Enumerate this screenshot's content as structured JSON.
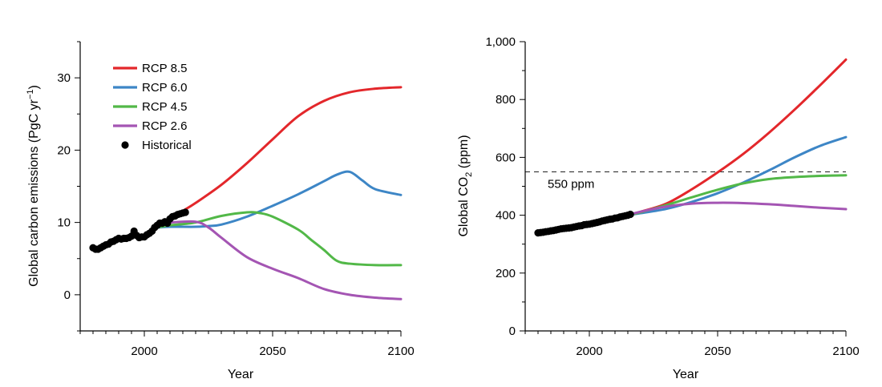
{
  "chart_data": [
    {
      "type": "line",
      "xlabel": "Year",
      "ylabel_main": "Global carbon emissions (PgC yr",
      "ylabel_sup": "−1",
      "ylabel_tail": ")",
      "xlim": [
        1975,
        2100
      ],
      "ylim": [
        -5,
        35
      ],
      "xticks": [
        2000,
        2050,
        2100
      ],
      "xticks_minor": [
        1975,
        1980,
        1985,
        1990,
        1995,
        2000,
        2005,
        2010,
        2015,
        2020,
        2025,
        2030,
        2035,
        2040,
        2045,
        2050,
        2055,
        2060,
        2065,
        2070,
        2075,
        2080,
        2085,
        2090,
        2095,
        2100
      ],
      "yticks": [
        0,
        10,
        20,
        30
      ],
      "yticks_minor": [
        -5,
        0,
        5,
        10,
        15,
        20,
        25,
        30,
        35
      ],
      "ytick_labels": [
        "0",
        "10",
        "20",
        "30"
      ],
      "legend": [
        {
          "label": "RCP 8.5",
          "color": "#e3272b",
          "kind": "line"
        },
        {
          "label": "RCP 6.0",
          "color": "#3d86c6",
          "kind": "line"
        },
        {
          "label": "RCP 4.5",
          "color": "#52b848",
          "kind": "line"
        },
        {
          "label": "RCP 2.6",
          "color": "#a455b3",
          "kind": "line"
        },
        {
          "label": "Historical",
          "color": "#000000",
          "kind": "dot"
        }
      ],
      "series": [
        {
          "name": "RCP 8.5",
          "color": "#e3272b",
          "x": [
            2015,
            2020,
            2030,
            2040,
            2050,
            2060,
            2070,
            2080,
            2090,
            2100
          ],
          "y": [
            11.6,
            12.7,
            15.2,
            18.2,
            21.5,
            24.7,
            26.8,
            28.0,
            28.5,
            28.7
          ]
        },
        {
          "name": "RCP 6.0",
          "color": "#3d86c6",
          "x": [
            2005,
            2010,
            2020,
            2025,
            2030,
            2040,
            2050,
            2060,
            2070,
            2075,
            2080,
            2085,
            2090,
            2100
          ],
          "y": [
            9.3,
            9.4,
            9.4,
            9.5,
            9.7,
            10.8,
            12.3,
            13.9,
            15.7,
            16.6,
            17.0,
            15.8,
            14.6,
            13.8
          ]
        },
        {
          "name": "RCP 4.5",
          "color": "#52b848",
          "x": [
            2005,
            2010,
            2020,
            2030,
            2040,
            2045,
            2050,
            2060,
            2065,
            2070,
            2075,
            2080,
            2090,
            2100
          ],
          "y": [
            9.3,
            9.6,
            10.0,
            10.9,
            11.4,
            11.3,
            10.8,
            9.0,
            7.6,
            6.2,
            4.7,
            4.3,
            4.1,
            4.1
          ]
        },
        {
          "name": "RCP 2.6",
          "color": "#a455b3",
          "x": [
            2010,
            2020,
            2025,
            2030,
            2040,
            2050,
            2060,
            2070,
            2080,
            2090,
            2100
          ],
          "y": [
            10.0,
            10.1,
            9.3,
            7.9,
            5.2,
            3.6,
            2.3,
            0.8,
            0.0,
            -0.4,
            -0.6
          ]
        }
      ],
      "historical": {
        "x": [
          1980,
          1981,
          1982,
          1983,
          1984,
          1985,
          1986,
          1987,
          1988,
          1989,
          1990,
          1991,
          1992,
          1993,
          1994,
          1995,
          1996,
          1997,
          1998,
          1999,
          2000,
          2001,
          2002,
          2003,
          2004,
          2005,
          2006,
          2007,
          2008,
          2009,
          2010,
          2011,
          2012,
          2013,
          2014,
          2015,
          2016
        ],
        "y": [
          6.5,
          6.3,
          6.3,
          6.5,
          6.7,
          6.9,
          7.0,
          7.3,
          7.4,
          7.6,
          7.8,
          7.7,
          7.8,
          7.8,
          7.9,
          8.1,
          8.8,
          8.2,
          7.9,
          8.0,
          8.0,
          8.3,
          8.5,
          8.8,
          9.3,
          9.6,
          9.9,
          9.9,
          10.1,
          9.9,
          10.5,
          10.8,
          10.9,
          11.1,
          11.2,
          11.3,
          11.4
        ]
      }
    },
    {
      "type": "line",
      "xlabel": "Year",
      "ylabel_main": "Global CO",
      "ylabel_sub": "2",
      "ylabel_tail": " (ppm)",
      "xlim": [
        1975,
        2100
      ],
      "ylim": [
        0,
        1000
      ],
      "xticks": [
        2000,
        2050,
        2100
      ],
      "xticks_minor": [
        1975,
        1980,
        1985,
        1990,
        1995,
        2000,
        2005,
        2010,
        2015,
        2020,
        2025,
        2030,
        2035,
        2040,
        2045,
        2050,
        2055,
        2060,
        2065,
        2070,
        2075,
        2080,
        2085,
        2090,
        2095,
        2100
      ],
      "yticks": [
        0,
        200,
        400,
        600,
        800,
        1000
      ],
      "yticks_minor": [
        0,
        100,
        200,
        300,
        400,
        500,
        600,
        700,
        800,
        900,
        1000
      ],
      "ytick_labels": [
        "0",
        "200",
        "400",
        "600",
        "800",
        "1,000"
      ],
      "reference_line": {
        "y": 550,
        "label": "550 ppm"
      },
      "series": [
        {
          "name": "RCP 8.5",
          "color": "#e3272b",
          "x": [
            2015,
            2020,
            2030,
            2040,
            2050,
            2060,
            2070,
            2080,
            2090,
            2100
          ],
          "y": [
            400,
            412,
            440,
            490,
            548,
            612,
            685,
            765,
            850,
            938
          ]
        },
        {
          "name": "RCP 6.0",
          "color": "#3d86c6",
          "x": [
            2015,
            2020,
            2030,
            2040,
            2050,
            2060,
            2070,
            2080,
            2090,
            2100
          ],
          "y": [
            400,
            407,
            422,
            446,
            476,
            513,
            555,
            600,
            640,
            670
          ]
        },
        {
          "name": "RCP 4.5",
          "color": "#52b848",
          "x": [
            2015,
            2020,
            2030,
            2040,
            2050,
            2060,
            2070,
            2080,
            2090,
            2100
          ],
          "y": [
            400,
            410,
            435,
            462,
            488,
            510,
            525,
            532,
            536,
            538
          ]
        },
        {
          "name": "RCP 2.6",
          "color": "#a455b3",
          "x": [
            2015,
            2020,
            2030,
            2040,
            2050,
            2060,
            2070,
            2080,
            2090,
            2100
          ],
          "y": [
            400,
            412,
            430,
            440,
            443,
            442,
            438,
            432,
            426,
            421
          ]
        }
      ],
      "historical": {
        "x": [
          1980,
          1981,
          1982,
          1983,
          1984,
          1985,
          1986,
          1987,
          1988,
          1989,
          1990,
          1991,
          1992,
          1993,
          1994,
          1995,
          1996,
          1997,
          1998,
          1999,
          2000,
          2001,
          2002,
          2003,
          2004,
          2005,
          2006,
          2007,
          2008,
          2009,
          2010,
          2011,
          2012,
          2013,
          2014,
          2015,
          2016
        ],
        "y": [
          339,
          340,
          341,
          343,
          344,
          346,
          347,
          349,
          351,
          353,
          354,
          355,
          356,
          357,
          359,
          361,
          363,
          364,
          367,
          368,
          369,
          371,
          373,
          375,
          377,
          380,
          382,
          384,
          386,
          387,
          390,
          391,
          394,
          396,
          398,
          400,
          403
        ]
      }
    }
  ]
}
